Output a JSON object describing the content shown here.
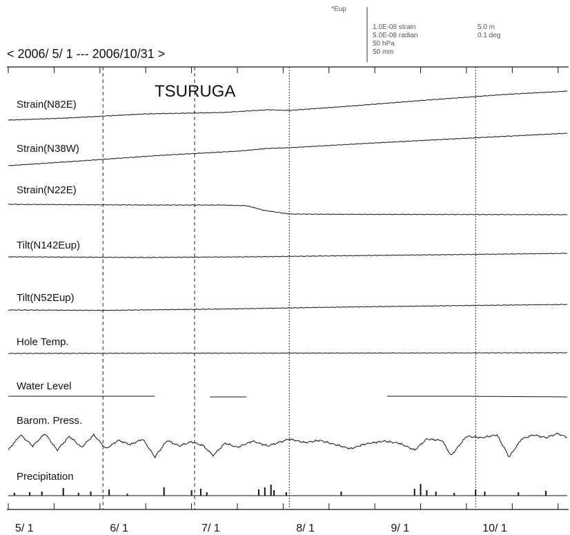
{
  "chart_data": {
    "type": "line",
    "title": "TSURUGA",
    "date_range": "< 2006/ 5/ 1 --- 2006/10/31 >",
    "x_range": [
      "2006-05-01",
      "2006-10-31"
    ],
    "month_markers": [
      {
        "date": "2006-06-01",
        "line": "dashed"
      },
      {
        "date": "2006-07-01",
        "line": "dashed"
      },
      {
        "date": "2006-08-01",
        "line": "dotted"
      },
      {
        "date": "2006-10-01",
        "line": "dotted"
      }
    ],
    "month_tick_labels": [
      {
        "label": "5/ 1",
        "date": "2006-05-01"
      },
      {
        "label": "6/ 1",
        "date": "2006-06-01"
      },
      {
        "label": "7/ 1",
        "date": "2006-07-01"
      },
      {
        "label": "8/ 1",
        "date": "2006-08-01"
      },
      {
        "label": "9/ 1",
        "date": "2006-09-01"
      },
      {
        "label": "10/ 1",
        "date": "2006-10-01"
      }
    ],
    "scale_header": "*Eup",
    "scale_legend": [
      "1.0E-08 strain",
      "5.0E-08 radian",
      "50 hPa",
      "50 mm",
      "5.0 m",
      "0.1 deg"
    ],
    "channels": [
      {
        "label": "Strain(N82E)",
        "kind": "trend",
        "points": [
          [
            "2006-05-01",
            0.0
          ],
          [
            "2006-05-20",
            0.15
          ],
          [
            "2006-06-15",
            0.45
          ],
          [
            "2006-07-10",
            0.55
          ],
          [
            "2006-07-25",
            0.75
          ],
          [
            "2006-08-01",
            0.7
          ],
          [
            "2006-08-20",
            1.0
          ],
          [
            "2006-09-15",
            1.45
          ],
          [
            "2006-10-10",
            1.85
          ],
          [
            "2006-10-31",
            2.1
          ]
        ]
      },
      {
        "label": "Strain(N38W)",
        "kind": "trend",
        "points": [
          [
            "2006-05-01",
            0.0
          ],
          [
            "2006-05-25",
            0.35
          ],
          [
            "2006-06-20",
            0.75
          ],
          [
            "2006-07-15",
            1.05
          ],
          [
            "2006-07-25",
            1.25
          ],
          [
            "2006-08-01",
            1.3
          ],
          [
            "2006-08-25",
            1.6
          ],
          [
            "2006-09-20",
            1.9
          ],
          [
            "2006-10-31",
            2.35
          ]
        ]
      },
      {
        "label": "Strain(N22E)",
        "kind": "step",
        "points": [
          [
            "2006-05-01",
            0.0
          ],
          [
            "2006-06-15",
            -0.05
          ],
          [
            "2006-07-10",
            -0.05
          ],
          [
            "2006-07-18",
            -0.1
          ],
          [
            "2006-07-24",
            -0.45
          ],
          [
            "2006-08-01",
            -0.7
          ],
          [
            "2006-08-15",
            -0.72
          ],
          [
            "2006-10-31",
            -0.75
          ]
        ]
      },
      {
        "label": "Tilt(N142Eup)",
        "kind": "trend",
        "points": [
          [
            "2006-05-01",
            0.0
          ],
          [
            "2006-06-15",
            -0.05
          ],
          [
            "2006-07-20",
            0.0
          ],
          [
            "2006-08-20",
            0.08
          ],
          [
            "2006-09-20",
            0.15
          ],
          [
            "2006-10-31",
            0.25
          ]
        ]
      },
      {
        "label": "Tilt(N52Eup)",
        "kind": "trend",
        "points": [
          [
            "2006-05-01",
            0.0
          ],
          [
            "2006-06-01",
            -0.03
          ],
          [
            "2006-07-15",
            0.08
          ],
          [
            "2006-08-15",
            0.2
          ],
          [
            "2006-09-20",
            0.3
          ],
          [
            "2006-10-31",
            0.4
          ]
        ]
      },
      {
        "label": "Hole Temp.",
        "kind": "trend",
        "points": [
          [
            "2006-05-01",
            0.0
          ],
          [
            "2006-07-01",
            0.02
          ],
          [
            "2006-09-01",
            0.03
          ],
          [
            "2006-10-31",
            0.05
          ]
        ]
      },
      {
        "label": "Water Level",
        "kind": "segments",
        "segments": [
          [
            [
              "2006-05-01",
              0.0
            ],
            [
              "2006-06-18",
              0.0
            ]
          ],
          [
            [
              "2006-07-06",
              -0.05
            ],
            [
              "2006-07-18",
              -0.05
            ]
          ],
          [
            [
              "2006-09-02",
              0.0
            ],
            [
              "2006-09-28",
              0.0
            ],
            [
              "2006-10-31",
              -0.05
            ]
          ]
        ]
      },
      {
        "label": "Barom. Press.",
        "kind": "oscillating",
        "points": [
          [
            "2006-05-01",
            -0.6
          ],
          [
            "2006-05-05",
            0.5
          ],
          [
            "2006-05-09",
            -0.3
          ],
          [
            "2006-05-13",
            0.6
          ],
          [
            "2006-05-17",
            -0.6
          ],
          [
            "2006-05-21",
            0.4
          ],
          [
            "2006-05-25",
            -0.4
          ],
          [
            "2006-05-29",
            0.5
          ],
          [
            "2006-06-02",
            -0.5
          ],
          [
            "2006-06-06",
            0.1
          ],
          [
            "2006-06-10",
            -0.2
          ],
          [
            "2006-06-14",
            0.2
          ],
          [
            "2006-06-18",
            -1.1
          ],
          [
            "2006-06-22",
            0.1
          ],
          [
            "2006-06-26",
            -0.3
          ],
          [
            "2006-06-30",
            0.0
          ],
          [
            "2006-07-04",
            -0.3
          ],
          [
            "2006-07-07",
            -1.0
          ],
          [
            "2006-07-11",
            -0.1
          ],
          [
            "2006-07-15",
            -0.4
          ],
          [
            "2006-07-20",
            0.05
          ],
          [
            "2006-07-25",
            -0.3
          ],
          [
            "2006-08-01",
            0.2
          ],
          [
            "2006-08-06",
            -0.05
          ],
          [
            "2006-08-11",
            0.1
          ],
          [
            "2006-08-16",
            -0.2
          ],
          [
            "2006-08-21",
            -0.5
          ],
          [
            "2006-08-26",
            -0.15
          ],
          [
            "2006-09-01",
            0.05
          ],
          [
            "2006-09-06",
            -0.1
          ],
          [
            "2006-09-11",
            -0.6
          ],
          [
            "2006-09-15",
            0.2
          ],
          [
            "2006-09-20",
            0.1
          ],
          [
            "2006-09-23",
            -1.0
          ],
          [
            "2006-09-28",
            0.4
          ],
          [
            "2006-10-03",
            0.3
          ],
          [
            "2006-10-08",
            0.5
          ],
          [
            "2006-10-12",
            -1.1
          ],
          [
            "2006-10-16",
            0.2
          ],
          [
            "2006-10-20",
            0.5
          ],
          [
            "2006-10-24",
            0.3
          ],
          [
            "2006-10-28",
            0.6
          ],
          [
            "2006-10-31",
            0.3
          ]
        ]
      },
      {
        "label": "Precipitation",
        "kind": "bars",
        "bars": [
          [
            "2006-05-03",
            0.2
          ],
          [
            "2006-05-08",
            0.25
          ],
          [
            "2006-05-12",
            0.3
          ],
          [
            "2006-05-19",
            0.55
          ],
          [
            "2006-05-24",
            0.2
          ],
          [
            "2006-05-28",
            0.3
          ],
          [
            "2006-06-03",
            0.45
          ],
          [
            "2006-06-09",
            0.15
          ],
          [
            "2006-06-21",
            0.6
          ],
          [
            "2006-06-30",
            0.4
          ],
          [
            "2006-07-03",
            0.5
          ],
          [
            "2006-07-05",
            0.25
          ],
          [
            "2006-07-22",
            0.45
          ],
          [
            "2006-07-24",
            0.6
          ],
          [
            "2006-07-26",
            0.8
          ],
          [
            "2006-07-27",
            0.4
          ],
          [
            "2006-07-31",
            0.25
          ],
          [
            "2006-08-18",
            0.3
          ],
          [
            "2006-09-11",
            0.5
          ],
          [
            "2006-09-13",
            0.85
          ],
          [
            "2006-09-15",
            0.4
          ],
          [
            "2006-09-18",
            0.3
          ],
          [
            "2006-09-24",
            0.2
          ],
          [
            "2006-10-01",
            0.45
          ],
          [
            "2006-10-04",
            0.3
          ],
          [
            "2006-10-15",
            0.25
          ],
          [
            "2006-10-24",
            0.35
          ]
        ]
      }
    ]
  }
}
